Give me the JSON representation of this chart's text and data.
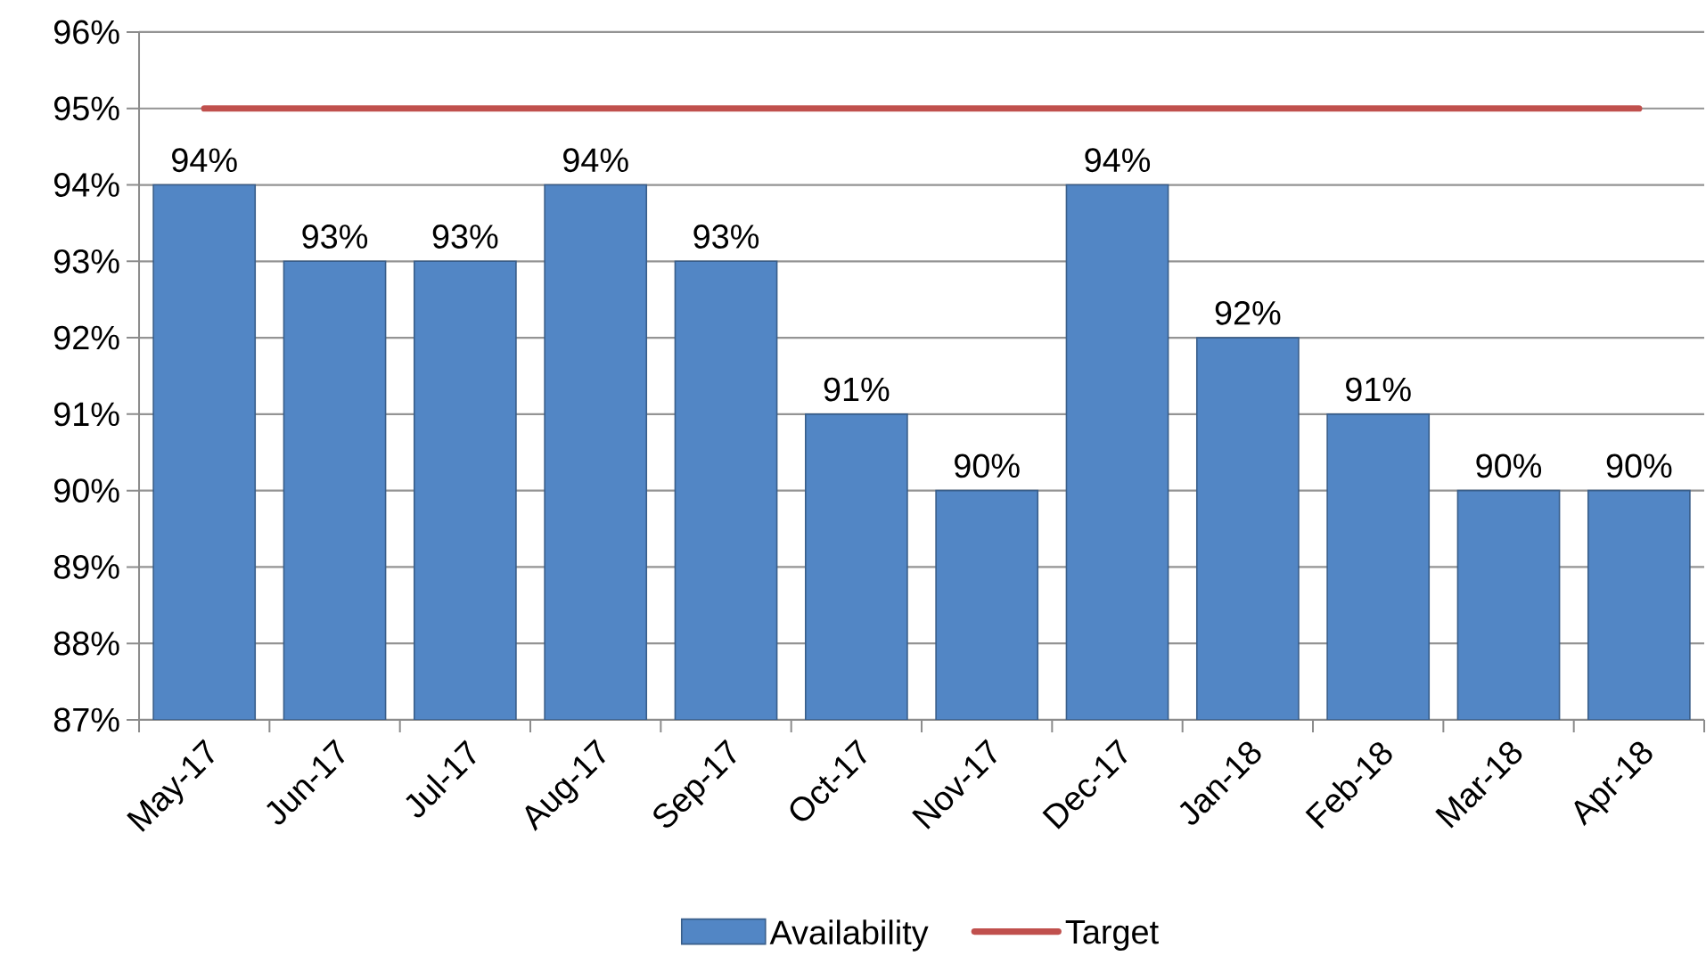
{
  "chart_data": {
    "type": "bar",
    "categories": [
      "May-17",
      "Jun-17",
      "Jul-17",
      "Aug-17",
      "Sep-17",
      "Oct-17",
      "Nov-17",
      "Dec-17",
      "Jan-18",
      "Feb-18",
      "Mar-18",
      "Apr-18"
    ],
    "series": [
      {
        "name": "Availability",
        "color": "#5286c5",
        "values": [
          94,
          93,
          93,
          94,
          93,
          91,
          90,
          94,
          92,
          91,
          90,
          90
        ],
        "value_labels": [
          "94%",
          "93%",
          "93%",
          "94%",
          "93%",
          "91%",
          "90%",
          "94%",
          "92%",
          "91%",
          "90%",
          "90%"
        ]
      },
      {
        "name": "Target",
        "type": "line",
        "color": "#c0504d",
        "values": [
          95,
          95,
          95,
          95,
          95,
          95,
          95,
          95,
          95,
          95,
          95,
          95
        ]
      }
    ],
    "ylim": [
      87,
      96
    ],
    "yticks": [
      {
        "value": 87,
        "label": "87%"
      },
      {
        "value": 88,
        "label": "88%"
      },
      {
        "value": 89,
        "label": "89%"
      },
      {
        "value": 90,
        "label": "90%"
      },
      {
        "value": 91,
        "label": "91%"
      },
      {
        "value": 92,
        "label": "92%"
      },
      {
        "value": 93,
        "label": "93%"
      },
      {
        "value": 94,
        "label": "94%"
      },
      {
        "value": 95,
        "label": "95%"
      },
      {
        "value": 96,
        "label": "96%"
      }
    ],
    "grid": "y",
    "legend": "bottom"
  }
}
